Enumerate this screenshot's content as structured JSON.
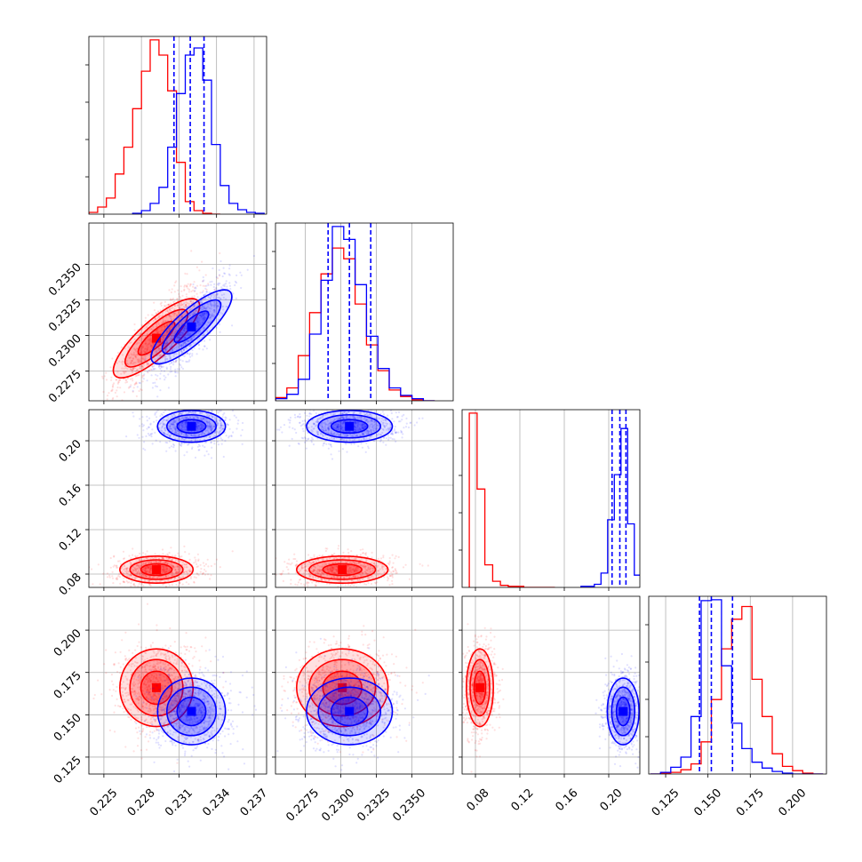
{
  "chart_data": {
    "type": "scatter",
    "subtype": "corner-plot",
    "parameters": [
      {
        "range": [
          0.2238,
          0.238
        ],
        "ticks": [
          0.225,
          0.228,
          0.231,
          0.234,
          0.237
        ],
        "tick_labels": [
          "0.225",
          "0.228",
          "0.231",
          "0.234",
          "0.237"
        ]
      },
      {
        "range": [
          0.2254,
          0.2379
        ],
        "ticks": [
          0.2275,
          0.23,
          0.2325,
          0.235
        ],
        "tick_labels": [
          "0.2275",
          "0.2300",
          "0.2325",
          "0.2350"
        ]
      },
      {
        "range": [
          0.068,
          0.228
        ],
        "ticks": [
          0.08,
          0.12,
          0.16,
          0.2
        ],
        "tick_labels": [
          "0.08",
          "0.12",
          "0.16",
          "0.20"
        ]
      },
      {
        "range": [
          0.115,
          0.22
        ],
        "ticks": [
          0.125,
          0.15,
          0.175,
          0.2
        ],
        "tick_labels": [
          "0.125",
          "0.150",
          "0.175",
          "0.200"
        ]
      }
    ],
    "series": [
      {
        "color": "#ff0000",
        "marginals": [
          {
            "edges": [
              0.2238,
              0.2245,
              0.2252,
              0.2259,
              0.2266,
              0.2273,
              0.228,
              0.2287,
              0.2294,
              0.2301,
              0.2308,
              0.2315,
              0.2322,
              0.2329,
              0.2336,
              0.2343
            ],
            "counts": [
              2,
              8,
              18,
              45,
              75,
              118,
              160,
              195,
              178,
              138,
              58,
              14,
              4,
              1,
              0
            ]
          },
          {
            "edges": [
              0.2254,
              0.2262,
              0.227,
              0.2278,
              0.2286,
              0.2294,
              0.2302,
              0.231,
              0.2318,
              0.2326,
              0.2334,
              0.2342,
              0.235,
              0.2358,
              0.2366
            ],
            "counts": [
              3,
              12,
              42,
              82,
              118,
              142,
              132,
              90,
              52,
              28,
              10,
              4,
              1,
              0
            ]
          },
          {
            "edges": [
              0.0745,
              0.0815,
              0.0885,
              0.0955,
              0.1025,
              0.1095,
              0.1165,
              0.1235,
              0.1305,
              0.1375,
              0.1445,
              0.1515
            ],
            "counts": [
              170,
              96,
              22,
              6,
              2,
              1,
              1,
              0,
              0,
              0,
              0
            ]
          },
          {
            "edges": [
              0.116,
              0.122,
              0.128,
              0.134,
              0.14,
              0.146,
              0.152,
              0.158,
              0.164,
              0.17,
              0.176,
              0.182,
              0.188,
              0.194,
              0.2,
              0.206,
              0.212,
              0.218
            ],
            "counts": [
              0,
              1,
              2,
              5,
              12,
              38,
              88,
              148,
              183,
              198,
              112,
              68,
              24,
              9,
              4,
              1,
              0
            ]
          }
        ],
        "centers": [
          [
            0.2292,
            0.2298,
            0.084,
            0.166
          ],
          [
            null,
            0.2301,
            0.084,
            0.166
          ],
          [
            null,
            null,
            0.084,
            0.166
          ]
        ]
      },
      {
        "color": "#0000ff",
        "marginals": [
          {
            "edges": [
              0.2273,
              0.228,
              0.2287,
              0.2294,
              0.2301,
              0.2308,
              0.2315,
              0.2322,
              0.2329,
              0.2336,
              0.2343,
              0.235,
              0.2357,
              0.2364,
              0.2371,
              0.2378
            ],
            "counts": [
              1,
              4,
              12,
              30,
              75,
              135,
              178,
              186,
              150,
              78,
              32,
              12,
              5,
              2,
              1
            ]
          },
          {
            "edges": [
              0.2254,
              0.2262,
              0.227,
              0.2278,
              0.2286,
              0.2294,
              0.2302,
              0.231,
              0.2318,
              0.2326,
              0.2334,
              0.2342,
              0.235,
              0.2358,
              0.2366
            ],
            "counts": [
              2,
              6,
              20,
              62,
              112,
              162,
              150,
              108,
              60,
              30,
              12,
              5,
              2,
              0
            ]
          },
          {
            "edges": [
              0.175,
              0.181,
              0.187,
              0.193,
              0.199,
              0.205,
              0.211,
              0.217,
              0.223,
              0.229
            ],
            "counts": [
              1,
              1,
              3,
              14,
              66,
              110,
              155,
              62,
              12
            ]
          },
          {
            "edges": [
              0.116,
              0.122,
              0.128,
              0.134,
              0.14,
              0.146,
              0.152,
              0.158,
              0.164,
              0.17,
              0.176,
              0.182,
              0.188,
              0.194,
              0.2,
              0.206,
              0.212,
              0.218
            ],
            "counts": [
              0,
              2,
              8,
              20,
              68,
              205,
              206,
              128,
              60,
              30,
              14,
              7,
              3,
              1,
              0,
              0,
              0
            ]
          }
        ],
        "centers": [
          [
            0.232,
            0.2306,
            0.213,
            0.152
          ],
          [
            null,
            0.2306,
            0.213,
            0.152
          ],
          [
            null,
            null,
            0.213,
            0.152
          ]
        ]
      }
    ],
    "quantiles": [
      [
        0.2306,
        0.2319,
        0.233
      ],
      [
        0.2291,
        0.2306,
        0.2321
      ],
      [
        0.203,
        0.21,
        0.2155
      ],
      [
        0.145,
        0.152,
        0.1645
      ]
    ],
    "quantile_color": "#0000ff",
    "grid": true
  }
}
